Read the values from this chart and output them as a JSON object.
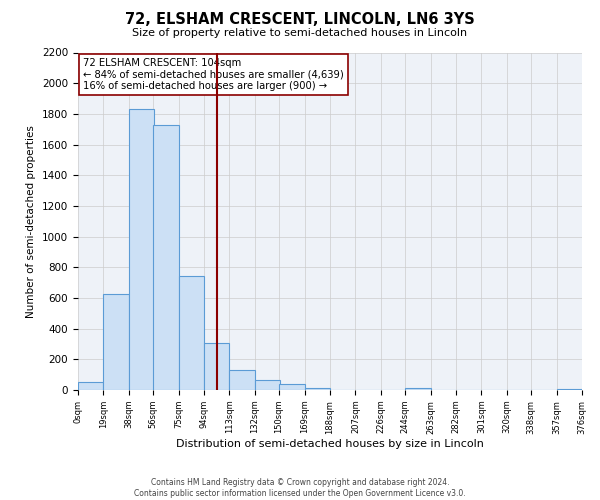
{
  "title": "72, ELSHAM CRESCENT, LINCOLN, LN6 3YS",
  "subtitle": "Size of property relative to semi-detached houses in Lincoln",
  "xlabel": "Distribution of semi-detached houses by size in Lincoln",
  "ylabel": "Number of semi-detached properties",
  "bar_left_edges": [
    0,
    19,
    38,
    56,
    75,
    94,
    113,
    132,
    150,
    169,
    188,
    207,
    226,
    244,
    263,
    282,
    301,
    320,
    338,
    357
  ],
  "bar_heights": [
    55,
    625,
    1830,
    1730,
    740,
    305,
    130,
    65,
    40,
    10,
    0,
    0,
    0,
    15,
    0,
    0,
    0,
    0,
    0,
    5
  ],
  "bin_width": 19,
  "bar_color": "#cce0f5",
  "bar_edge_color": "#5b9bd5",
  "property_size": 104,
  "vline_color": "#8b0000",
  "annotation_title": "72 ELSHAM CRESCENT: 104sqm",
  "annotation_line1": "← 84% of semi-detached houses are smaller (4,639)",
  "annotation_line2": "16% of semi-detached houses are larger (900) →",
  "annotation_box_color": "#ffffff",
  "annotation_box_edge": "#8b0000",
  "ylim": [
    0,
    2200
  ],
  "yticks": [
    0,
    200,
    400,
    600,
    800,
    1000,
    1200,
    1400,
    1600,
    1800,
    2000,
    2200
  ],
  "xtick_labels": [
    "0sqm",
    "19sqm",
    "38sqm",
    "56sqm",
    "75sqm",
    "94sqm",
    "113sqm",
    "132sqm",
    "150sqm",
    "169sqm",
    "188sqm",
    "207sqm",
    "226sqm",
    "244sqm",
    "263sqm",
    "282sqm",
    "301sqm",
    "320sqm",
    "338sqm",
    "357sqm",
    "376sqm"
  ],
  "grid_color": "#cccccc",
  "background_color": "#eef2f8",
  "footer_line1": "Contains HM Land Registry data © Crown copyright and database right 2024.",
  "footer_line2": "Contains public sector information licensed under the Open Government Licence v3.0."
}
